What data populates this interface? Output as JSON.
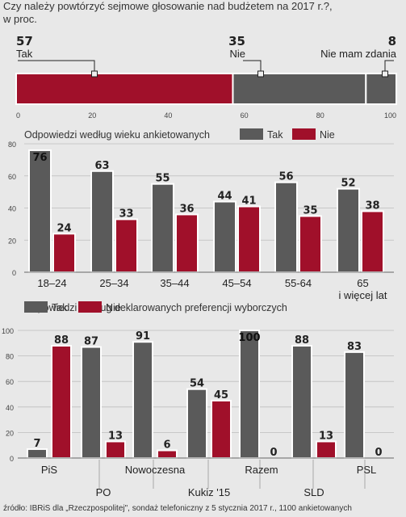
{
  "title_line1": "Czy należy powtórzyć sejmowe głosowanie nad budżetem na 2017 r.?,",
  "title_line2": "w proc.",
  "source": "źródło: IBRiS dla „Rzeczpospolitej\", sondaż telefoniczny z 5 stycznia 2017 r., 1100 ankietowanych",
  "colors": {
    "tak": "#5a5a5a",
    "nie": "#a0102a",
    "edge": "#ffffff"
  },
  "chart_data": [
    {
      "type": "bar",
      "orientation": "horizontal-stacked",
      "segments": [
        {
          "label": "Tak",
          "value": 57
        },
        {
          "label": "Nie",
          "value": 35
        },
        {
          "label": "Nie mam zdania",
          "value": 8
        }
      ],
      "xlim": [
        0,
        100
      ],
      "xticks": [
        "0",
        "20",
        "40",
        "60",
        "80",
        "100"
      ]
    },
    {
      "type": "bar",
      "title": "Odpowiedzi według wieku ankietowanych",
      "legend": [
        "Tak",
        "Nie"
      ],
      "categories": [
        "18–24",
        "25–34",
        "35–44",
        "45–54",
        "55-64",
        "65\ni więcej lat"
      ],
      "series": [
        {
          "name": "Tak",
          "values": [
            76,
            63,
            55,
            44,
            56,
            52
          ]
        },
        {
          "name": "Nie",
          "values": [
            24,
            33,
            36,
            41,
            35,
            38
          ]
        }
      ],
      "ylim": [
        0,
        80
      ],
      "yticks": [
        "0",
        "20",
        "40",
        "60",
        "80"
      ]
    },
    {
      "type": "bar",
      "title": "Odpowiedzi według deklarowanych preferencji wyborczych",
      "legend": [
        "Tak",
        "Nie"
      ],
      "categories": [
        "PiS",
        "PO",
        "Nowoczesna",
        "Kukiz '15",
        "Razem",
        "SLD",
        "PSL"
      ],
      "series": [
        {
          "name": "Tak",
          "values": [
            7,
            87,
            91,
            54,
            100,
            88,
            83
          ]
        },
        {
          "name": "Nie",
          "values": [
            88,
            13,
            6,
            45,
            0,
            13,
            0
          ]
        }
      ],
      "ylim": [
        0,
        100
      ],
      "yticks": [
        "0",
        "20",
        "40",
        "60",
        "80",
        "100"
      ]
    }
  ]
}
